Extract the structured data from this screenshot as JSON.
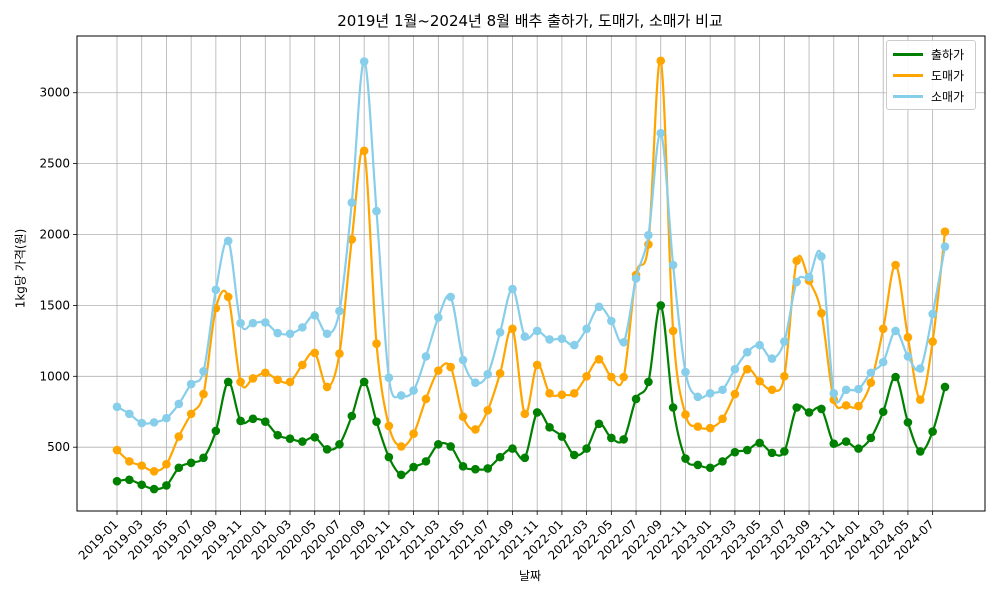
{
  "chart_data": {
    "type": "line",
    "title": "2019년 1월~2024년 8월 배추 출하가, 도매가, 소매가 비교",
    "xlabel": "날짜",
    "ylabel": "1kg당 가격(원)",
    "ylim": [
      50,
      3400
    ],
    "yticks": [
      500,
      1000,
      1500,
      2000,
      2500,
      3000
    ],
    "grid": true,
    "legend_position": "top-right",
    "x_tick_labels": [
      "2019-01",
      "2019-03",
      "2019-05",
      "2019-07",
      "2019-09",
      "2019-11",
      "2020-01",
      "2020-03",
      "2020-05",
      "2020-07",
      "2020-09",
      "2020-11",
      "2021-01",
      "2021-03",
      "2021-05",
      "2021-07",
      "2021-09",
      "2021-11",
      "2022-01",
      "2022-03",
      "2022-05",
      "2022-07",
      "2022-09",
      "2022-11",
      "2023-01",
      "2023-03",
      "2023-05",
      "2023-07",
      "2023-09",
      "2023-11",
      "2024-01",
      "2024-03",
      "2024-05",
      "2024-07"
    ],
    "x": [
      "2019-01",
      "2019-02",
      "2019-03",
      "2019-04",
      "2019-05",
      "2019-06",
      "2019-07",
      "2019-08",
      "2019-09",
      "2019-10",
      "2019-11",
      "2019-12",
      "2020-01",
      "2020-02",
      "2020-03",
      "2020-04",
      "2020-05",
      "2020-06",
      "2020-07",
      "2020-08",
      "2020-09",
      "2020-10",
      "2020-11",
      "2020-12",
      "2021-01",
      "2021-02",
      "2021-03",
      "2021-04",
      "2021-05",
      "2021-06",
      "2021-07",
      "2021-08",
      "2021-09",
      "2021-10",
      "2021-11",
      "2021-12",
      "2022-01",
      "2022-02",
      "2022-03",
      "2022-04",
      "2022-05",
      "2022-06",
      "2022-07",
      "2022-08",
      "2022-09",
      "2022-10",
      "2022-11",
      "2022-12",
      "2023-01",
      "2023-02",
      "2023-03",
      "2023-04",
      "2023-05",
      "2023-06",
      "2023-07",
      "2023-08",
      "2023-09",
      "2023-10",
      "2023-11",
      "2023-12",
      "2024-01",
      "2024-02",
      "2024-03",
      "2024-04",
      "2024-05",
      "2024-06",
      "2024-07",
      "2024-08"
    ],
    "series": [
      {
        "name": "출하가",
        "color": "#008000",
        "values": [
          260,
          270,
          235,
          205,
          230,
          355,
          390,
          425,
          615,
          960,
          685,
          700,
          680,
          585,
          560,
          540,
          570,
          485,
          520,
          720,
          960,
          680,
          430,
          305,
          360,
          400,
          520,
          505,
          365,
          345,
          350,
          430,
          490,
          425,
          745,
          640,
          575,
          445,
          490,
          665,
          565,
          555,
          840,
          960,
          1500,
          780,
          420,
          375,
          355,
          400,
          465,
          480,
          530,
          460,
          470,
          780,
          745,
          770,
          525,
          540,
          490,
          565,
          750,
          995,
          675,
          470,
          610,
          925
        ]
      },
      {
        "name": "도매가",
        "color": "#ffa500",
        "values": [
          480,
          400,
          370,
          330,
          380,
          575,
          735,
          875,
          1480,
          1560,
          960,
          985,
          1025,
          975,
          960,
          1080,
          1165,
          925,
          1160,
          1965,
          2590,
          1230,
          650,
          505,
          595,
          840,
          1040,
          1065,
          715,
          625,
          760,
          1020,
          1335,
          735,
          1080,
          880,
          870,
          880,
          1000,
          1120,
          995,
          995,
          1715,
          1930,
          3225,
          1320,
          730,
          645,
          635,
          700,
          875,
          1050,
          965,
          905,
          1000,
          1815,
          1675,
          1445,
          835,
          795,
          790,
          955,
          1335,
          1785,
          1275,
          835,
          1245,
          2020
        ]
      },
      {
        "name": "소매가",
        "color": "#87ceeb",
        "values": [
          785,
          735,
          670,
          675,
          705,
          805,
          945,
          1035,
          1610,
          1955,
          1375,
          1375,
          1380,
          1305,
          1300,
          1345,
          1430,
          1300,
          1460,
          2225,
          3220,
          2165,
          990,
          865,
          900,
          1140,
          1415,
          1560,
          1115,
          955,
          1015,
          1310,
          1615,
          1280,
          1320,
          1260,
          1265,
          1220,
          1335,
          1490,
          1390,
          1240,
          1690,
          1995,
          2715,
          1785,
          1030,
          855,
          880,
          905,
          1050,
          1170,
          1220,
          1125,
          1245,
          1665,
          1700,
          1845,
          880,
          905,
          910,
          1025,
          1100,
          1320,
          1140,
          1055,
          1440,
          1915
        ]
      }
    ]
  }
}
